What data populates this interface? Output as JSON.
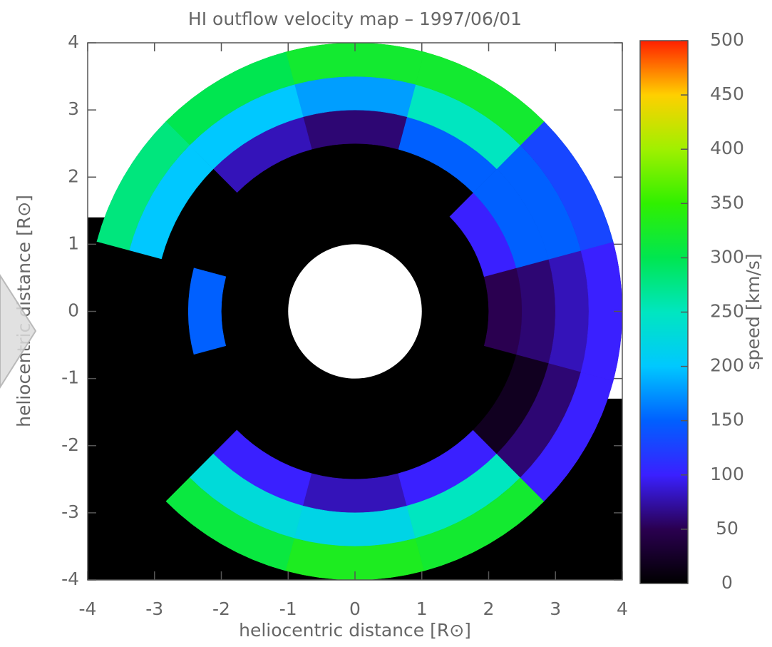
{
  "chart_data": {
    "type": "polar-map",
    "title": "HI outflow velocity map – 1997/06/01",
    "xlabel": "heliocentric distance [R⊙]",
    "ylabel": "heliocentric distance [R⊙]",
    "xlim": [
      -4,
      4
    ],
    "ylim": [
      -4,
      4
    ],
    "xticks": [
      -4,
      -3,
      -2,
      -1,
      0,
      1,
      2,
      3,
      4
    ],
    "yticks": [
      -4,
      -3,
      -2,
      -1,
      0,
      1,
      2,
      3,
      4
    ],
    "theta": [
      0,
      30,
      60,
      90,
      120,
      150,
      180,
      210,
      240,
      270,
      300,
      330
    ],
    "r_edges": [
      1,
      2,
      2.5,
      3,
      3.5,
      4
    ],
    "values": [
      [
        0,
        50,
        60,
        80,
        100
      ],
      [
        0,
        100,
        150,
        150,
        130
      ],
      [
        0,
        0,
        150,
        250,
        320
      ],
      [
        0,
        0,
        60,
        180,
        320
      ],
      [
        0,
        0,
        80,
        200,
        300
      ],
      [
        0,
        0,
        0,
        200,
        280
      ],
      [
        0,
        150,
        0,
        0,
        0
      ],
      [
        0,
        0,
        0,
        0,
        0
      ],
      [
        0,
        0,
        100,
        230,
        310
      ],
      [
        0,
        0,
        80,
        220,
        330
      ],
      [
        0,
        0,
        100,
        250,
        320
      ],
      [
        0,
        0,
        20,
        60,
        100
      ]
    ],
    "colorbar": {
      "label": "speed [km/s]",
      "clim": [
        0,
        500
      ],
      "ticks": [
        0,
        50,
        100,
        150,
        200,
        250,
        300,
        350,
        400,
        450,
        500
      ],
      "colormap": [
        "#000000",
        "#2a0050",
        "#3a20ff",
        "#0060ff",
        "#00c8ff",
        "#00e6c0",
        "#00e650",
        "#30f000",
        "#a0f000",
        "#ffd000",
        "#ff2000"
      ]
    }
  }
}
